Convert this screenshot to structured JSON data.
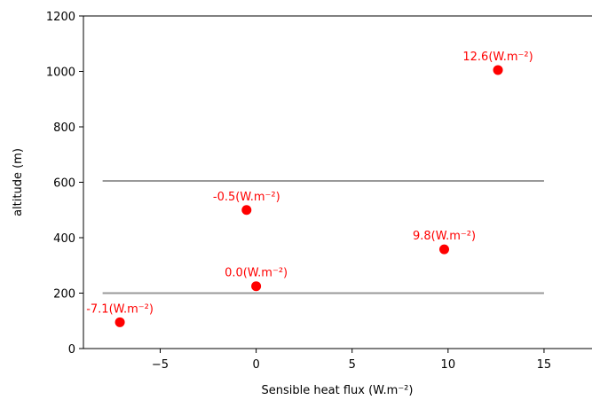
{
  "chart_data": {
    "type": "scatter",
    "xlabel": "Sensible heat flux (W.m⁻²)",
    "ylabel": "altitude (m)",
    "xlim": [
      -9,
      17.5
    ],
    "ylim": [
      0,
      1200
    ],
    "xticks": [
      -5,
      0,
      5,
      10,
      15
    ],
    "xtick_labels": [
      "−5",
      "0",
      "5",
      "10",
      "15"
    ],
    "yticks": [
      0,
      200,
      400,
      600,
      800,
      1000,
      1200
    ],
    "ytick_labels": [
      "0",
      "200",
      "400",
      "600",
      "800",
      "1000",
      "1200"
    ],
    "grid": false,
    "points": [
      {
        "x": -7.1,
        "y": 95,
        "label": "-7.1(W.m⁻²)"
      },
      {
        "x": 0.0,
        "y": 225,
        "label": "0.0(W.m⁻²)"
      },
      {
        "x": -0.5,
        "y": 500,
        "label": "-0.5(W.m⁻²)"
      },
      {
        "x": 9.8,
        "y": 358,
        "label": "9.8(W.m⁻²)"
      },
      {
        "x": 12.6,
        "y": 1005,
        "label": "12.6(W.m⁻²)"
      }
    ],
    "hlines": [
      {
        "y": 200,
        "xmin": -8,
        "xmax": 15
      },
      {
        "y": 605,
        "xmin": -8,
        "xmax": 15
      }
    ],
    "colors": {
      "points": "#ff0000",
      "labels": "#ff0000",
      "hlines": "#999999",
      "axes": "#000000"
    }
  }
}
